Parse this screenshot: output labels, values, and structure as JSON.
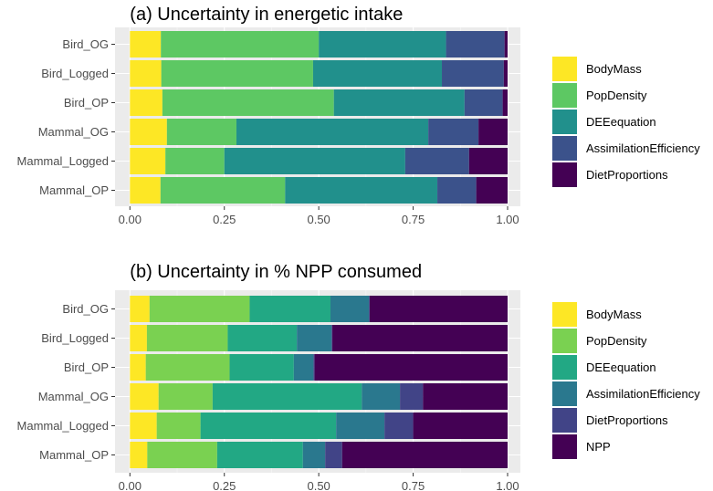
{
  "chart_data": [
    {
      "type": "bar",
      "orientation": "horizontal",
      "stacked": true,
      "title": "(a) Uncertainty in energetic intake",
      "xlabel": "",
      "ylabel": "",
      "xlim": [
        0,
        1
      ],
      "xticks": [
        "0.00",
        "0.25",
        "0.50",
        "0.75",
        "1.00"
      ],
      "categories": [
        "Bird_OG",
        "Bird_Logged",
        "Bird_OP",
        "Mammal_OG",
        "Mammal_Logged",
        "Mammal_OP"
      ],
      "legend_position": "right",
      "series": [
        {
          "name": "BodyMass",
          "color": "#FDE725",
          "values": [
            0.082,
            0.083,
            0.086,
            0.098,
            0.094,
            0.081
          ]
        },
        {
          "name": "PopDensity",
          "color": "#5DC863",
          "values": [
            0.418,
            0.402,
            0.454,
            0.184,
            0.156,
            0.33
          ]
        },
        {
          "name": "DEEequation",
          "color": "#21908C",
          "values": [
            0.337,
            0.341,
            0.346,
            0.508,
            0.479,
            0.403
          ]
        },
        {
          "name": "AssimilationEfficiency",
          "color": "#3B528B",
          "values": [
            0.155,
            0.164,
            0.101,
            0.133,
            0.169,
            0.103
          ]
        },
        {
          "name": "DietProportions",
          "color": "#440154",
          "values": [
            0.008,
            0.01,
            0.013,
            0.077,
            0.102,
            0.083
          ]
        }
      ]
    },
    {
      "type": "bar",
      "orientation": "horizontal",
      "stacked": true,
      "title": "(b) Uncertainty in % NPP consumed",
      "xlabel": "",
      "ylabel": "",
      "xlim": [
        0,
        1
      ],
      "xticks": [
        "0.00",
        "0.25",
        "0.50",
        "0.75",
        "1.00"
      ],
      "categories": [
        "Bird_OG",
        "Bird_Logged",
        "Bird_OP",
        "Mammal_OG",
        "Mammal_Logged",
        "Mammal_OP"
      ],
      "legend_position": "right",
      "series": [
        {
          "name": "BodyMass",
          "color": "#FDE725",
          "values": [
            0.052,
            0.045,
            0.042,
            0.076,
            0.071,
            0.046
          ]
        },
        {
          "name": "PopDensity",
          "color": "#7AD151",
          "values": [
            0.265,
            0.214,
            0.222,
            0.143,
            0.116,
            0.185
          ]
        },
        {
          "name": "DEEequation",
          "color": "#22A884",
          "values": [
            0.214,
            0.183,
            0.17,
            0.395,
            0.359,
            0.227
          ]
        },
        {
          "name": "AssimilationEfficiency",
          "color": "#2A788E",
          "values": [
            0.102,
            0.092,
            0.052,
            0.101,
            0.128,
            0.059
          ]
        },
        {
          "name": "DietProportions",
          "color": "#414487",
          "values": [
            0.002,
            0.002,
            0.003,
            0.061,
            0.076,
            0.045
          ]
        },
        {
          "name": "NPP",
          "color": "#440154",
          "values": [
            0.365,
            0.464,
            0.511,
            0.224,
            0.25,
            0.438
          ]
        }
      ]
    }
  ]
}
